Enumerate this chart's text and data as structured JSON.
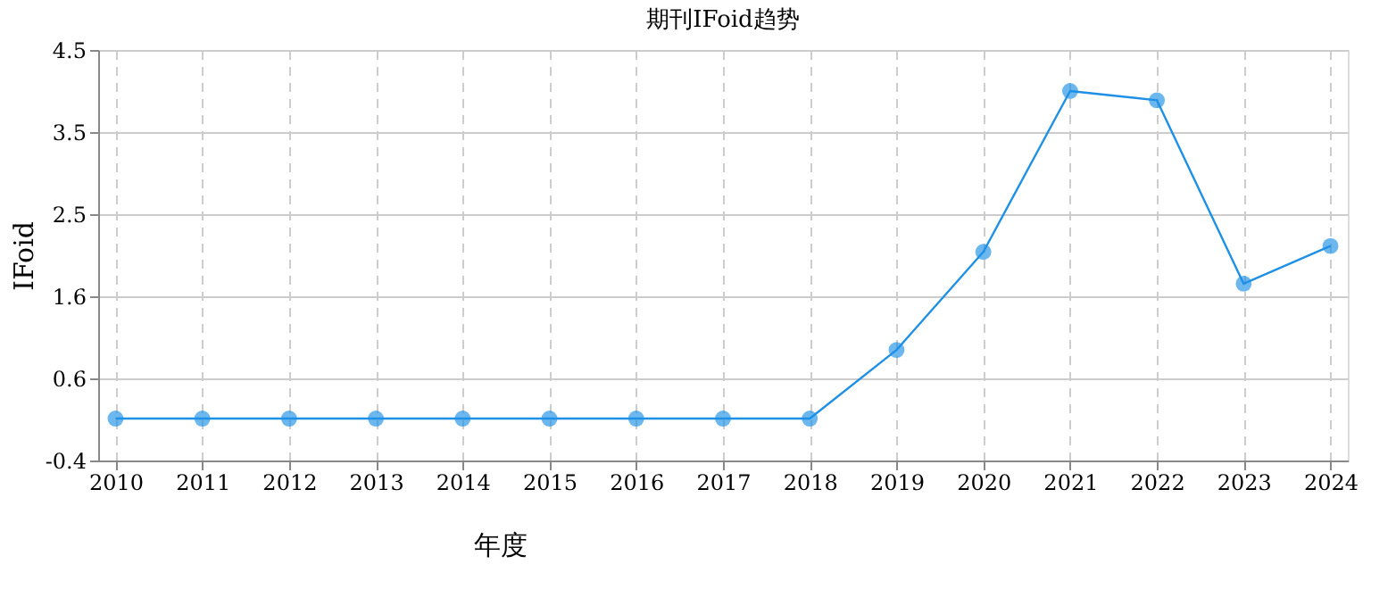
{
  "chart_data": {
    "type": "line",
    "title": "期刊IFoid趋势",
    "xlabel": "年度",
    "ylabel": "IFoid",
    "categories": [
      "2010",
      "2011",
      "2012",
      "2013",
      "2014",
      "2015",
      "2016",
      "2017",
      "2018",
      "2019",
      "2020",
      "2021",
      "2022",
      "2023",
      "2024"
    ],
    "series": [
      {
        "color": "#1e90e6",
        "values": [
          0.1,
          0.1,
          0.1,
          0.1,
          0.1,
          0.1,
          0.1,
          0.1,
          0.1,
          0.92,
          2.09,
          4.01,
          3.9,
          1.71,
          2.16
        ]
      }
    ],
    "ylim": [
      -0.4,
      4.5
    ],
    "yticks": [
      {
        "value": -0.4,
        "label": "-0.4"
      },
      {
        "value": 0.58,
        "label": "0.6"
      },
      {
        "value": 1.56,
        "label": "1.6"
      },
      {
        "value": 2.54,
        "label": "2.5"
      },
      {
        "value": 3.52,
        "label": "3.5"
      },
      {
        "value": 4.5,
        "label": "4.5"
      }
    ],
    "grid": true,
    "marker": "circle",
    "line_style": "solid"
  }
}
